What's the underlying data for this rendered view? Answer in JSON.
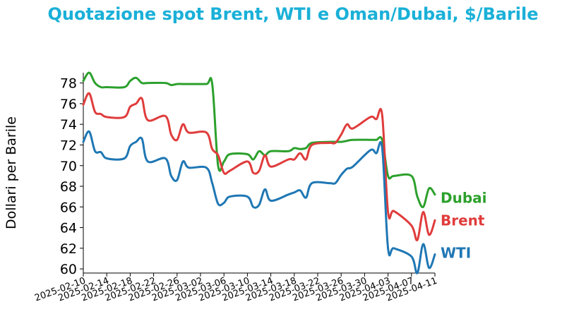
{
  "chart_data": {
    "type": "line",
    "title": "Quotazione spot Brent, WTI e Oman/Dubai, $/Barile",
    "xlabel": "",
    "ylabel": "Dollari per Barile",
    "ylim": [
      59.6,
      79.0
    ],
    "yticks": [
      60,
      62,
      64,
      66,
      68,
      70,
      72,
      74,
      76,
      78
    ],
    "xticks": [
      "2025-02-10",
      "2025-02-14",
      "2025-02-18",
      "2025-02-22",
      "2025-02-26",
      "2025-03-02",
      "2025-03-06",
      "2025-03-10",
      "2025-03-14",
      "2025-03-18",
      "2025-03-22",
      "2025-03-26",
      "2025-03-30",
      "2025-04-03",
      "2025-04-07",
      "2025-04-11"
    ],
    "xrange": [
      "2025-02-10",
      "2025-04-11"
    ],
    "grid": false,
    "legend": "inline labels at right end of lines",
    "colors": {
      "title": "#1ab0d8",
      "Dubai": "#2ca02c",
      "Brent": "#e03c3c",
      "WTI": "#1f77b4"
    },
    "series": [
      {
        "name": "Dubai",
        "x": [
          "2025-02-10",
          "2025-02-11",
          "2025-02-12",
          "2025-02-13",
          "2025-02-14",
          "2025-02-17",
          "2025-02-18",
          "2025-02-19",
          "2025-02-20",
          "2025-02-21",
          "2025-02-24",
          "2025-02-25",
          "2025-02-26",
          "2025-02-27",
          "2025-02-28",
          "2025-03-03",
          "2025-03-04",
          "2025-03-05",
          "2025-03-06",
          "2025-03-07",
          "2025-03-10",
          "2025-03-11",
          "2025-03-12",
          "2025-03-13",
          "2025-03-14",
          "2025-03-17",
          "2025-03-18",
          "2025-03-19",
          "2025-03-20",
          "2025-03-21",
          "2025-03-24",
          "2025-03-25",
          "2025-03-26",
          "2025-03-27",
          "2025-03-28",
          "2025-03-31",
          "2025-04-01",
          "2025-04-02",
          "2025-04-03",
          "2025-04-04",
          "2025-04-07",
          "2025-04-08",
          "2025-04-09",
          "2025-04-10",
          "2025-04-11"
        ],
        "values": [
          78.2,
          79.0,
          78.0,
          77.6,
          77.6,
          77.6,
          78.2,
          78.5,
          78.0,
          78.0,
          78.0,
          77.8,
          77.9,
          77.9,
          77.9,
          77.9,
          77.9,
          70.0,
          70.4,
          71.1,
          71.1,
          70.6,
          71.4,
          71.0,
          71.4,
          71.4,
          71.7,
          71.6,
          71.7,
          72.2,
          72.3,
          72.3,
          72.3,
          72.4,
          72.5,
          72.5,
          72.5,
          72.5,
          69.0,
          69.0,
          69.0,
          67.0,
          66.0,
          67.8,
          67.2
        ]
      },
      {
        "name": "Brent",
        "x": [
          "2025-02-10",
          "2025-02-11",
          "2025-02-12",
          "2025-02-13",
          "2025-02-14",
          "2025-02-17",
          "2025-02-18",
          "2025-02-19",
          "2025-02-20",
          "2025-02-21",
          "2025-02-24",
          "2025-02-25",
          "2025-02-26",
          "2025-02-27",
          "2025-02-28",
          "2025-03-03",
          "2025-03-04",
          "2025-03-05",
          "2025-03-06",
          "2025-03-07",
          "2025-03-10",
          "2025-03-11",
          "2025-03-12",
          "2025-03-13",
          "2025-03-14",
          "2025-03-17",
          "2025-03-18",
          "2025-03-19",
          "2025-03-20",
          "2025-03-21",
          "2025-03-24",
          "2025-03-25",
          "2025-03-26",
          "2025-03-27",
          "2025-03-28",
          "2025-03-31",
          "2025-04-01",
          "2025-04-02",
          "2025-04-03",
          "2025-04-04",
          "2025-04-07",
          "2025-04-08",
          "2025-04-09",
          "2025-04-10",
          "2025-04-11"
        ],
        "values": [
          75.9,
          77.0,
          75.2,
          75.0,
          74.7,
          74.7,
          75.7,
          76.0,
          76.5,
          74.4,
          74.8,
          73.0,
          72.5,
          74.0,
          73.2,
          73.2,
          71.6,
          71.0,
          69.3,
          69.5,
          70.4,
          69.3,
          69.5,
          71.0,
          69.9,
          70.6,
          70.6,
          71.2,
          70.6,
          72.0,
          72.2,
          72.2,
          73.0,
          74.0,
          73.6,
          74.7,
          74.5,
          74.9,
          65.5,
          65.6,
          64.2,
          62.8,
          65.5,
          63.3,
          64.7
        ]
      },
      {
        "name": "WTI",
        "x": [
          "2025-02-10",
          "2025-02-11",
          "2025-02-12",
          "2025-02-13",
          "2025-02-14",
          "2025-02-17",
          "2025-02-18",
          "2025-02-19",
          "2025-02-20",
          "2025-02-21",
          "2025-02-24",
          "2025-02-25",
          "2025-02-26",
          "2025-02-27",
          "2025-02-28",
          "2025-03-03",
          "2025-03-04",
          "2025-03-05",
          "2025-03-06",
          "2025-03-07",
          "2025-03-10",
          "2025-03-11",
          "2025-03-12",
          "2025-03-13",
          "2025-03-14",
          "2025-03-17",
          "2025-03-18",
          "2025-03-19",
          "2025-03-20",
          "2025-03-21",
          "2025-03-24",
          "2025-03-25",
          "2025-03-26",
          "2025-03-27",
          "2025-03-28",
          "2025-03-31",
          "2025-04-01",
          "2025-04-02",
          "2025-04-03",
          "2025-04-04",
          "2025-04-07",
          "2025-04-08",
          "2025-04-09",
          "2025-04-10",
          "2025-04-11"
        ],
        "values": [
          72.3,
          73.3,
          71.4,
          71.3,
          70.7,
          70.7,
          71.9,
          72.3,
          72.6,
          70.4,
          70.7,
          69.0,
          68.6,
          70.4,
          69.8,
          69.8,
          68.3,
          66.3,
          66.4,
          67.0,
          67.0,
          66.0,
          66.2,
          67.7,
          66.6,
          67.2,
          67.4,
          67.6,
          66.9,
          68.3,
          68.3,
          68.3,
          69.1,
          69.7,
          69.9,
          71.5,
          71.2,
          71.7,
          62.0,
          62.0,
          61.2,
          59.6,
          62.4,
          60.1,
          61.4
        ]
      }
    ]
  }
}
